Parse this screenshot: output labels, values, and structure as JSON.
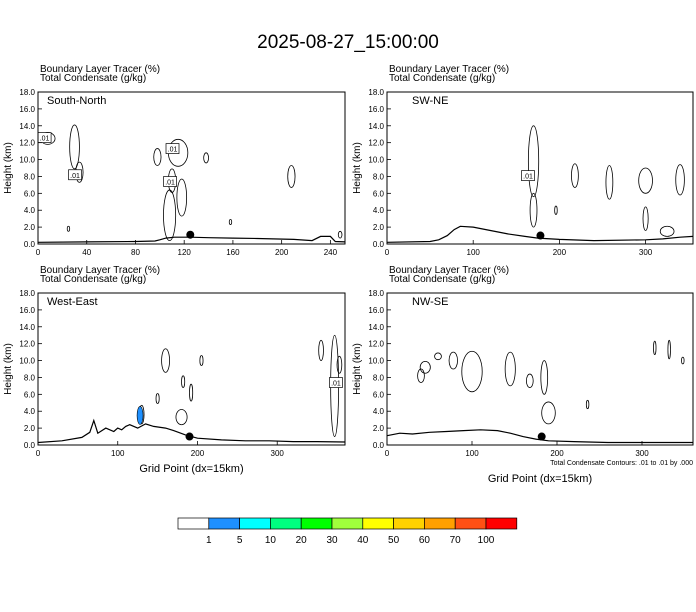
{
  "title": "2025-08-27_15:00:00",
  "panel_header": {
    "line1": "Boundary Layer Tracer   (%)",
    "line2": "Total Condensate   (g/kg)"
  },
  "footnote": "Total Condensate Contours: .01 to .01 by .000",
  "colorbar": {
    "labels": [
      "1",
      "5",
      "10",
      "20",
      "30",
      "40",
      "50",
      "60",
      "70",
      "100"
    ],
    "colors": [
      "#ffffff",
      "#1e90ff",
      "#00ffff",
      "#00ff80",
      "#00ff00",
      "#a0ff3c",
      "#ffff00",
      "#ffd200",
      "#ffa000",
      "#ff5014",
      "#ff0000"
    ]
  },
  "chart_data": [
    {
      "type": "contour",
      "label": "South-North",
      "xlabel": "",
      "ylabel": "Height (km)",
      "xlim": [
        0,
        252
      ],
      "ylim": [
        0,
        18
      ],
      "xticks": [
        0,
        40,
        80,
        120,
        160,
        200,
        240
      ],
      "yticks": [
        "0.0",
        "2.0",
        "4.0",
        "6.0",
        "8.0",
        "10.0",
        "12.0",
        "14.0",
        "16.0",
        "18.0"
      ],
      "marker": [
        125,
        1.1
      ],
      "contour_label": ".01",
      "terrain": [
        [
          0,
          0.2
        ],
        [
          40,
          0.25
        ],
        [
          80,
          0.3
        ],
        [
          96,
          0.35
        ],
        [
          100,
          0.5
        ],
        [
          105,
          0.7
        ],
        [
          112,
          0.8
        ],
        [
          125,
          0.8
        ],
        [
          140,
          0.75
        ],
        [
          160,
          0.7
        ],
        [
          180,
          0.65
        ],
        [
          210,
          0.55
        ],
        [
          225,
          0.4
        ],
        [
          232,
          0.9
        ],
        [
          240,
          0.9
        ],
        [
          244,
          0.3
        ],
        [
          252,
          0.25
        ]
      ]
    },
    {
      "type": "contour",
      "label": "SW-NE",
      "xlabel": "",
      "ylabel": "Height (km)",
      "xlim": [
        0,
        355
      ],
      "ylim": [
        0,
        18
      ],
      "xticks": [
        0,
        100,
        200,
        300
      ],
      "yticks": [
        "0.0",
        "2.0",
        "4.0",
        "6.0",
        "8.0",
        "10.0",
        "12.0",
        "14.0",
        "16.0",
        "18.0"
      ],
      "marker": [
        178,
        1.0
      ],
      "contour_label": ".01",
      "terrain": [
        [
          0,
          0.2
        ],
        [
          50,
          0.3
        ],
        [
          60,
          0.5
        ],
        [
          70,
          1.0
        ],
        [
          78,
          1.7
        ],
        [
          85,
          2.1
        ],
        [
          100,
          2.0
        ],
        [
          120,
          1.6
        ],
        [
          140,
          1.2
        ],
        [
          160,
          0.9
        ],
        [
          175,
          0.7
        ],
        [
          200,
          0.55
        ],
        [
          240,
          0.4
        ],
        [
          300,
          0.5
        ],
        [
          320,
          0.6
        ],
        [
          340,
          0.8
        ],
        [
          355,
          0.9
        ]
      ]
    },
    {
      "type": "contour",
      "label": "West-East",
      "xlabel": "Grid Point (dx=15km)",
      "ylabel": "Height (km)",
      "xlim": [
        0,
        385
      ],
      "ylim": [
        0,
        18
      ],
      "xticks": [
        0,
        100,
        200,
        300
      ],
      "yticks": [
        "0.0",
        "2.0",
        "4.0",
        "6.0",
        "8.0",
        "10.0",
        "12.0",
        "14.0",
        "16.0",
        "18.0"
      ],
      "marker": [
        190,
        1.0
      ],
      "contour_label": ".01",
      "terrain": [
        [
          0,
          0.3
        ],
        [
          30,
          0.5
        ],
        [
          55,
          0.9
        ],
        [
          65,
          1.5
        ],
        [
          70,
          2.9
        ],
        [
          75,
          1.4
        ],
        [
          85,
          2.0
        ],
        [
          95,
          1.6
        ],
        [
          100,
          2.0
        ],
        [
          105,
          1.8
        ],
        [
          110,
          2.2
        ],
        [
          115,
          2.4
        ],
        [
          125,
          2.0
        ],
        [
          135,
          2.5
        ],
        [
          145,
          2.2
        ],
        [
          160,
          2.0
        ],
        [
          170,
          1.7
        ],
        [
          185,
          1.2
        ],
        [
          200,
          0.8
        ],
        [
          230,
          0.6
        ],
        [
          260,
          0.5
        ],
        [
          290,
          0.5
        ],
        [
          320,
          0.4
        ],
        [
          350,
          0.4
        ],
        [
          385,
          0.35
        ]
      ]
    },
    {
      "type": "contour",
      "label": "NW-SE",
      "xlabel": "Grid Point (dx=15km)",
      "ylabel": "Height (km)",
      "xlim": [
        0,
        360
      ],
      "ylim": [
        0,
        18
      ],
      "xticks": [
        0,
        100,
        200,
        300
      ],
      "yticks": [
        "0.0",
        "2.0",
        "4.0",
        "6.0",
        "8.0",
        "10.0",
        "12.0",
        "14.0",
        "16.0",
        "18.0"
      ],
      "marker": [
        182,
        1.0
      ],
      "contour_label": "",
      "terrain": [
        [
          0,
          1.1
        ],
        [
          15,
          1.4
        ],
        [
          30,
          1.3
        ],
        [
          50,
          1.5
        ],
        [
          70,
          1.6
        ],
        [
          90,
          1.7
        ],
        [
          110,
          1.8
        ],
        [
          130,
          1.7
        ],
        [
          145,
          1.4
        ],
        [
          160,
          1.0
        ],
        [
          175,
          0.7
        ],
        [
          190,
          0.5
        ],
        [
          220,
          0.4
        ],
        [
          260,
          0.3
        ],
        [
          300,
          0.3
        ],
        [
          360,
          0.3
        ]
      ]
    }
  ]
}
